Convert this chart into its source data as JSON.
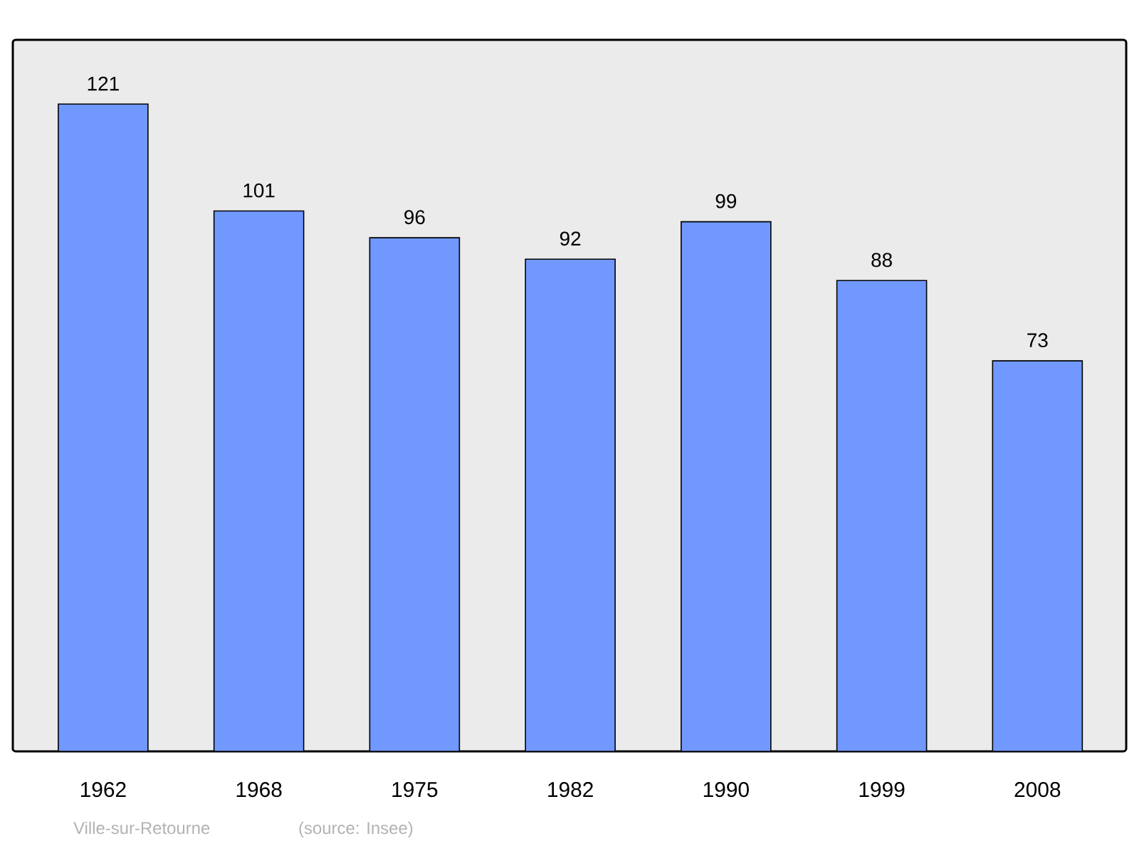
{
  "chart_data": {
    "type": "bar",
    "categories": [
      "1962",
      "1968",
      "1975",
      "1982",
      "1990",
      "1999",
      "2008"
    ],
    "values": [
      121,
      101,
      96,
      92,
      99,
      88,
      73
    ],
    "color": "#7098ff",
    "ylim": [
      0,
      133
    ],
    "data_labels": true,
    "annotations": [
      "Ville-sur-Retourne",
      "(source: Insee)"
    ]
  }
}
